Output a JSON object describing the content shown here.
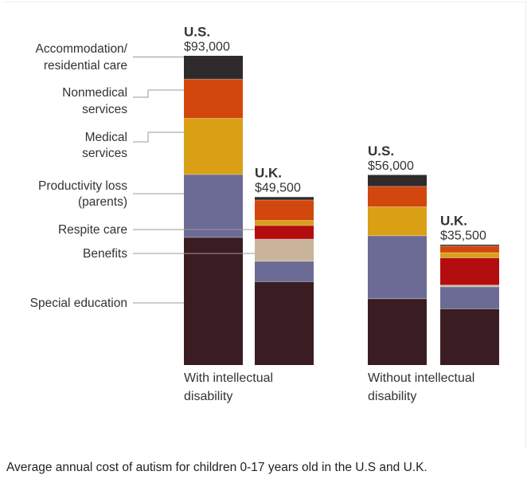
{
  "chart_data": {
    "type": "bar",
    "stacked": true,
    "title": "Average annual cost of autism for children 0-17 years old in the U.S and U.K.",
    "categories_order_bottom_to_top": [
      "Special education",
      "Benefits",
      "Respite care",
      "Productivity loss (parents)",
      "Medical services",
      "Nonmedical services",
      "Accommodation/ residential care"
    ],
    "category_labels": [
      [
        "Accommodation/",
        "residential care"
      ],
      [
        "Nonmedical",
        "services"
      ],
      [
        "Medical",
        "services"
      ],
      [
        "Productivity loss",
        "(parents)"
      ],
      [
        "Respite care"
      ],
      [
        "Benefits"
      ],
      [
        "Special education"
      ]
    ],
    "colors": {
      "Special education": "#3a1d22",
      "Benefits": "#c9b49b",
      "Respite care": "#b30d10",
      "Productivity loss (parents)": "#6c6b95",
      "Medical services": "#d9a016",
      "Nonmedical services": "#d2470e",
      "Accommodation/ residential care": "#2f2b2d"
    },
    "groups": [
      {
        "label": [
          "With intellectual",
          "disability"
        ],
        "bars": [
          {
            "country": "U.S.",
            "total_label": "$93,000",
            "total": 93000,
            "segments": [
              {
                "category": "Special education",
                "value": 37500
              },
              {
                "category": "Productivity loss (parents)",
                "value": 18500
              },
              {
                "category": "Medical services",
                "value": 16500
              },
              {
                "category": "Nonmedical services",
                "value": 11500
              },
              {
                "category": "Accommodation/ residential care",
                "value": 7000
              }
            ]
          },
          {
            "country": "U.K.",
            "total_label": "$49,500",
            "total": 49500,
            "segments": [
              {
                "category": "Special education",
                "value": 24500
              },
              {
                "category": "Productivity loss (parents)",
                "value": 6000
              },
              {
                "category": "Benefits",
                "value": 6500
              },
              {
                "category": "Respite care",
                "value": 4000
              },
              {
                "category": "Medical services",
                "value": 1500
              },
              {
                "category": "Nonmedical services",
                "value": 6000
              },
              {
                "category": "Accommodation/ residential care",
                "value": 1000
              }
            ]
          }
        ]
      },
      {
        "label": [
          "Without intellectual",
          "disability"
        ],
        "bars": [
          {
            "country": "U.S.",
            "total_label": "$56,000",
            "total": 56000,
            "segments": [
              {
                "category": "Special education",
                "value": 19500
              },
              {
                "category": "Productivity loss (parents)",
                "value": 18500
              },
              {
                "category": "Medical services",
                "value": 8500
              },
              {
                "category": "Nonmedical services",
                "value": 6000
              },
              {
                "category": "Accommodation/ residential care",
                "value": 3500
              }
            ]
          },
          {
            "country": "U.K.",
            "total_label": "$35,500",
            "total": 35500,
            "segments": [
              {
                "category": "Special education",
                "value": 16500
              },
              {
                "category": "Productivity loss (parents)",
                "value": 6500
              },
              {
                "category": "Benefits",
                "value": 500
              },
              {
                "category": "Respite care",
                "value": 8000
              },
              {
                "category": "Medical services",
                "value": 1500
              },
              {
                "category": "Nonmedical services",
                "value": 2000
              },
              {
                "category": "Accommodation/ residential care",
                "value": 500
              }
            ]
          }
        ]
      }
    ],
    "ylim": [
      0,
      93000
    ],
    "xlabel": "",
    "ylabel": "",
    "grid": false,
    "legend": "left, aligned to U.S. bar segments"
  }
}
